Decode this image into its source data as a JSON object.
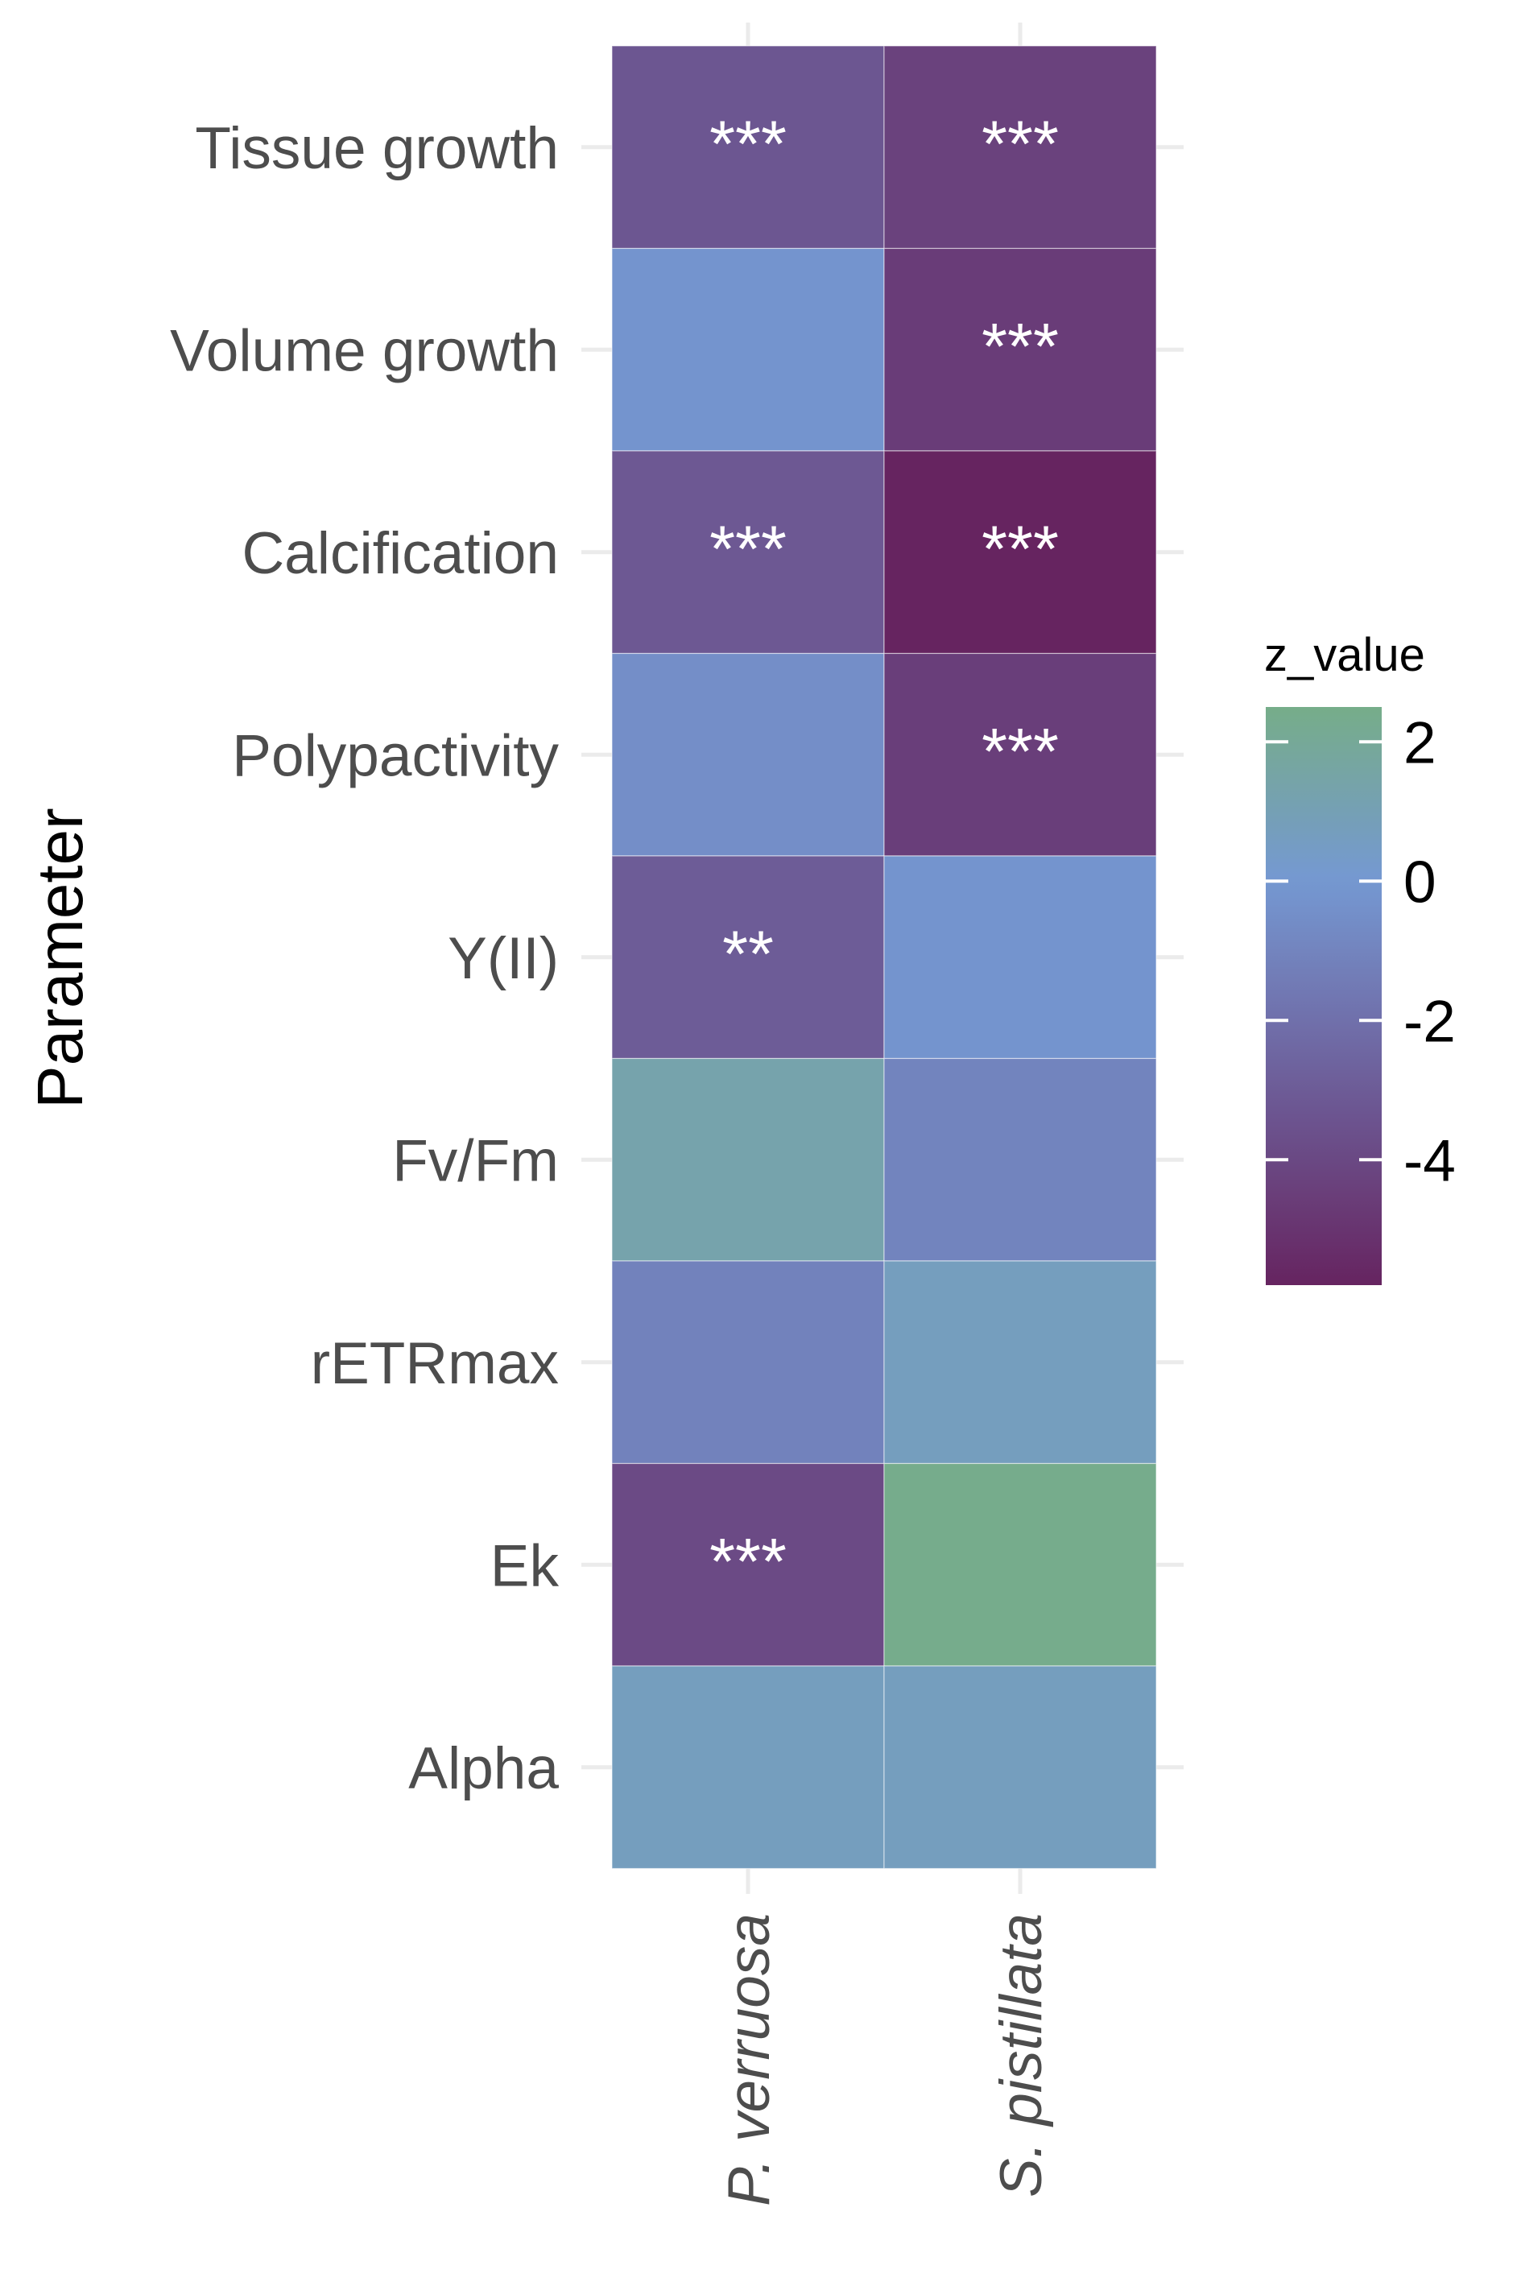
{
  "chart_data": {
    "type": "heatmap",
    "title": "",
    "xlabel": "",
    "ylabel": "Parameter",
    "x": [
      "P. verruosa",
      "S. pistillata"
    ],
    "y": [
      "Tissue growth",
      "Volume growth",
      "Calcification",
      "Polypactivity",
      "Y(II)",
      "Fv/Fm",
      "rETRmax",
      "Ek",
      "Alpha"
    ],
    "values": [
      [
        -3.3,
        -4.3
      ],
      [
        -0.2,
        -4.6
      ],
      [
        -3.2,
        -5.8
      ],
      [
        -0.5,
        -4.5
      ],
      [
        -3.0,
        -0.2
      ],
      [
        1.3,
        -1.0
      ],
      [
        -1.1,
        0.7
      ],
      [
        -3.9,
        2.4
      ],
      [
        0.7,
        0.7
      ]
    ],
    "annotations": [
      [
        "***",
        "***"
      ],
      [
        "",
        "***"
      ],
      [
        "***",
        "***"
      ],
      [
        "",
        "***"
      ],
      [
        "**",
        ""
      ],
      [
        "",
        ""
      ],
      [
        "",
        ""
      ],
      [
        "***",
        ""
      ],
      [
        "",
        ""
      ]
    ],
    "legend": {
      "title": "z_value",
      "ticks": [
        "2",
        "0",
        "-2",
        "-4"
      ],
      "tick_values": [
        2,
        0,
        -2,
        -4
      ],
      "range": [
        -5.8,
        2.5
      ],
      "colors": {
        "low": "#662460",
        "mid": "#7598d2",
        "high": "#76ad89"
      },
      "placement": "right"
    },
    "grid": true
  }
}
